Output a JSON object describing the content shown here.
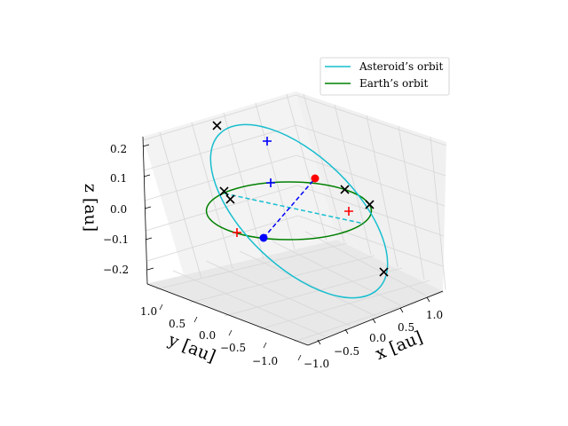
{
  "chart_data": {
    "type": "line",
    "projection": "3d",
    "axes": {
      "x": {
        "label": "x [au]",
        "ticks": [
          "−1.0",
          "−0.5",
          "0.0",
          "0.5",
          "1.0"
        ],
        "range": [
          -1.2,
          1.2
        ]
      },
      "y": {
        "label": "y [au]",
        "ticks": [
          "1.0",
          "0.5",
          "0.0",
          "−0.5",
          "−1.0"
        ],
        "range": [
          -1.2,
          1.2
        ]
      },
      "z": {
        "label": "z [au]",
        "ticks": [
          "0.2",
          "0.1",
          "0.0",
          "−0.1",
          "−0.2"
        ],
        "range": [
          -0.25,
          0.25
        ]
      }
    },
    "grid": true,
    "legend": {
      "position": "top-right",
      "entries": [
        {
          "name": "Asteroid’s orbit",
          "color": "#17becf"
        },
        {
          "name": "Earth’s orbit",
          "color": "#008000"
        }
      ]
    },
    "colors": {
      "asteroid_orbit": "#17becf",
      "earth_orbit": "#008000",
      "markers_black": "#000000",
      "markers_red": "#ff0000",
      "markers_blue": "#0000ff",
      "pane": "#f2f2f2",
      "grid": "#d9d9d9"
    }
  }
}
